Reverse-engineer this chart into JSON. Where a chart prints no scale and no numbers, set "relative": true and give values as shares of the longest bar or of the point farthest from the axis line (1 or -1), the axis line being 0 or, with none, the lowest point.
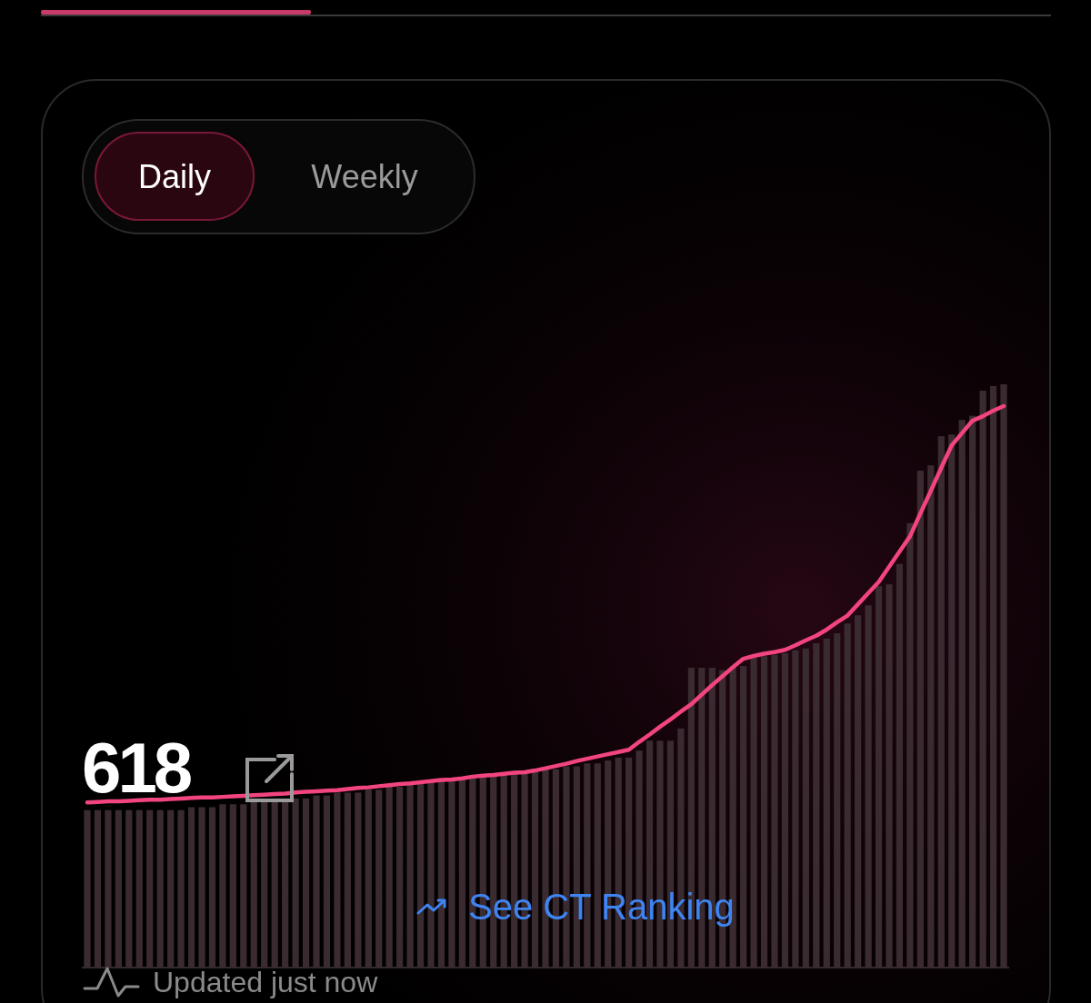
{
  "chart_data": [
    {
      "type": "bar",
      "relative": true,
      "color": "#3a2b31",
      "categories": [
        null,
        null,
        null,
        null,
        null,
        null,
        null,
        null,
        null,
        null,
        null,
        null,
        null,
        null,
        null,
        null,
        null,
        null,
        null,
        null,
        null,
        null,
        null,
        null,
        null,
        null,
        null,
        null,
        null,
        null,
        null,
        null,
        null,
        null,
        null,
        null,
        null,
        null,
        null,
        null,
        null,
        null,
        null,
        null,
        null,
        null,
        null,
        null,
        null,
        null,
        null,
        null,
        null,
        null,
        null,
        null,
        null,
        null,
        null,
        null,
        null,
        null,
        null,
        null,
        null,
        null,
        null,
        null,
        null,
        null,
        null,
        null,
        null,
        null,
        null,
        null,
        null,
        null,
        null,
        null,
        null,
        null,
        null,
        null,
        null,
        null,
        null,
        null,
        null
      ],
      "values": [
        0.27,
        0.27,
        0.27,
        0.27,
        0.27,
        0.27,
        0.27,
        0.27,
        0.27,
        0.27,
        0.275,
        0.275,
        0.275,
        0.28,
        0.28,
        0.28,
        0.285,
        0.285,
        0.285,
        0.29,
        0.29,
        0.29,
        0.295,
        0.295,
        0.3,
        0.3,
        0.3,
        0.305,
        0.305,
        0.31,
        0.31,
        0.315,
        0.315,
        0.32,
        0.32,
        0.32,
        0.325,
        0.325,
        0.33,
        0.33,
        0.33,
        0.335,
        0.335,
        0.335,
        0.34,
        0.34,
        0.345,
        0.345,
        0.35,
        0.35,
        0.355,
        0.36,
        0.36,
        0.372,
        0.389,
        0.389,
        0.389,
        0.41,
        0.514,
        0.514,
        0.514,
        0.51,
        0.517,
        0.517,
        0.531,
        0.534,
        0.536,
        0.539,
        0.544,
        0.547,
        0.556,
        0.564,
        0.573,
        0.59,
        0.604,
        0.621,
        0.654,
        0.657,
        0.692,
        0.762,
        0.852,
        0.861,
        0.911,
        0.914,
        0.939,
        0.946,
        0.989,
        0.997,
        1
      ],
      "annotations": [
        "Daily",
        "Weekly",
        "618",
        "See CT Ranking",
        "Updated just now"
      ]
    },
    {
      "type": "line",
      "relative": true,
      "color": "#f2457f",
      "marker": "none",
      "line_style": "solid",
      "categories": [
        null,
        null,
        null,
        null,
        null,
        null,
        null,
        null,
        null,
        null,
        null,
        null,
        null,
        null,
        null,
        null,
        null,
        null,
        null,
        null,
        null,
        null,
        null,
        null,
        null,
        null,
        null,
        null,
        null,
        null,
        null,
        null,
        null,
        null,
        null,
        null,
        null,
        null,
        null,
        null,
        null,
        null,
        null,
        null,
        null,
        null,
        null,
        null,
        null,
        null,
        null,
        null,
        null,
        null,
        null,
        null,
        null,
        null,
        null,
        null,
        null,
        null,
        null,
        null,
        null,
        null,
        null,
        null,
        null,
        null,
        null,
        null,
        null,
        null,
        null,
        null,
        null,
        null,
        null,
        null,
        null,
        null,
        null,
        null,
        null,
        null,
        null,
        null,
        null
      ],
      "values": [
        0.294,
        0.295,
        0.296,
        0.296,
        0.297,
        0.298,
        0.299,
        0.299,
        0.3,
        0.301,
        0.302,
        0.303,
        0.303,
        0.304,
        0.305,
        0.306,
        0.307,
        0.308,
        0.309,
        0.31,
        0.312,
        0.313,
        0.314,
        0.315,
        0.316,
        0.318,
        0.32,
        0.321,
        0.323,
        0.325,
        0.327,
        0.328,
        0.33,
        0.332,
        0.334,
        0.335,
        0.337,
        0.34,
        0.342,
        0.343,
        0.345,
        0.347,
        0.348,
        0.351,
        0.355,
        0.359,
        0.363,
        0.368,
        0.372,
        0.376,
        0.38,
        0.384,
        0.388,
        0.402,
        0.415,
        0.429,
        0.442,
        0.456,
        0.469,
        0.486,
        0.503,
        0.519,
        0.535,
        0.55,
        0.555,
        0.559,
        0.562,
        0.566,
        0.574,
        0.583,
        0.591,
        0.602,
        0.615,
        0.627,
        0.647,
        0.667,
        0.687,
        0.714,
        0.741,
        0.768,
        0.809,
        0.849,
        0.89,
        0.93,
        0.952,
        0.974,
        0.982,
        0.992,
        1
      ]
    }
  ]
}
